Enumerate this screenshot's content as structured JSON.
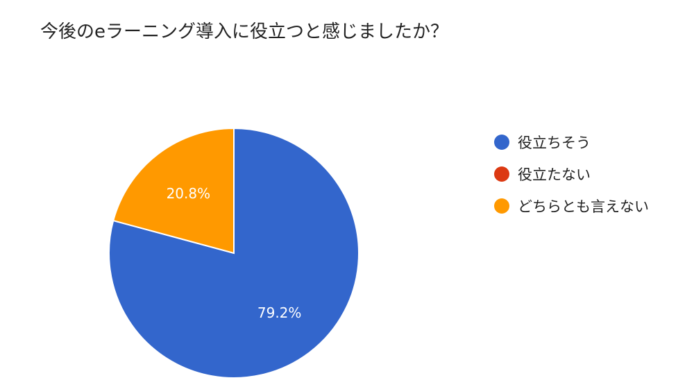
{
  "chart_data": {
    "type": "pie",
    "title": "今後のeラーニング導入に役立つと感じましたか？",
    "categories": [
      "役立ちそう",
      "役立たない",
      "どちらとも言えない"
    ],
    "values": [
      79.2,
      0,
      20.8
    ],
    "value_labels": [
      "79.2%",
      "",
      "20.8%"
    ],
    "colors": [
      "#3366cc",
      "#dc3912",
      "#ff9900"
    ],
    "legend_position": "right"
  }
}
